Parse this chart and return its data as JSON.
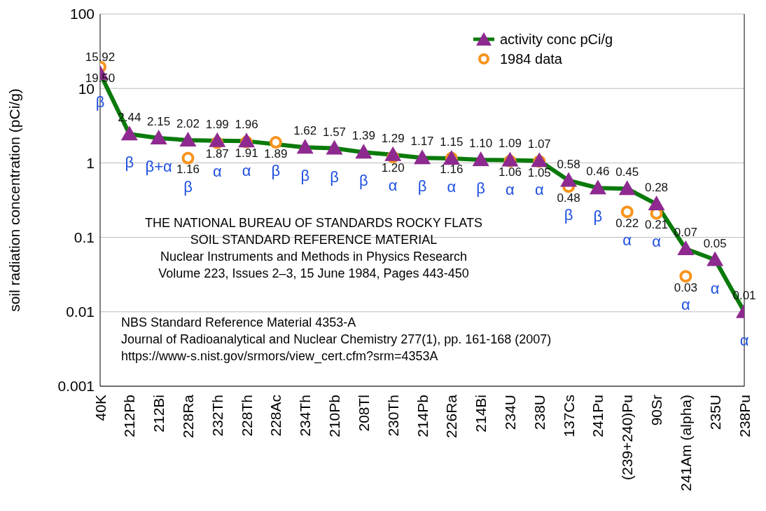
{
  "chart_data": {
    "type": "line",
    "ylabel": "soil radiation concentration (pCi/g)",
    "categories": [
      "40K",
      "212Pb",
      "212Bi",
      "228Ra",
      "232Th",
      "228Th",
      "228Ac",
      "234Th",
      "210Pb",
      "208Tl",
      "230Th",
      "214Pb",
      "226Ra",
      "214Bi",
      "234U",
      "238U",
      "137Cs",
      "241Pu",
      "(239+240)Pu",
      "90Sr",
      "241Am (alpha)",
      "235U",
      "238Pu"
    ],
    "series": [
      {
        "name": "activity conc pCi/g",
        "color": "#8e2a8f",
        "marker": "triangle",
        "values": [
          15.92,
          2.44,
          2.15,
          2.02,
          1.99,
          1.96,
          null,
          1.62,
          1.57,
          1.39,
          1.29,
          1.17,
          1.15,
          1.1,
          1.09,
          1.07,
          0.58,
          0.46,
          0.45,
          0.28,
          0.07,
          0.05,
          0.01
        ],
        "value_labels": [
          "15.92",
          "2.44",
          "2.15",
          "2.02",
          "1.99",
          "1.96",
          null,
          "1.62",
          "1.57",
          "1.39",
          "1.29",
          "1.17",
          "1.15",
          "1.10",
          "1.09",
          "1.07",
          "0.58",
          "0.46",
          "0.45",
          "0.28",
          "0.07",
          "0.05",
          "0.01"
        ]
      },
      {
        "name": "1984 data",
        "type": "scatter",
        "color": "#f7941d",
        "marker": "circle",
        "values": [
          19.5,
          null,
          null,
          1.16,
          1.87,
          1.91,
          1.89,
          null,
          null,
          null,
          1.2,
          null,
          1.16,
          null,
          1.06,
          1.05,
          0.48,
          null,
          0.22,
          0.21,
          0.03,
          null,
          null
        ],
        "value_labels": [
          "19.50",
          null,
          null,
          "1.16",
          "1.87",
          "1.91",
          "1.89",
          null,
          null,
          null,
          "1.20",
          null,
          "1.16",
          null,
          "1.06",
          "1.05",
          "0.48",
          null,
          "0.22",
          "0.21",
          "0.03",
          null,
          null
        ]
      }
    ],
    "log": "y",
    "ylim": [
      0.001,
      100
    ],
    "yticks": [
      0.001,
      0.01,
      0.1,
      1,
      10,
      100
    ],
    "grid": "y",
    "legend": "top right",
    "annotations": [
      "THE NATIONAL BUREAU OF STANDARDS ROCKY FLATS\nSOIL STANDARD REFERENCE MATERIAL\nNuclear Instruments and Methods in Physics Research\nVolume 223, Issues 2–3, 15 June 1984, Pages 443-450",
      "NBS Standard Reference Material 4353-A\nJournal of Radioanalytical and Nuclear Chemistry 277(1), pp. 161-168 (2007)\nhttps://www-s.nist.gov/srmors/view_cert.cfm?srm=4353A",
      {
        "text": "β",
        "x": "40K",
        "y": 15.92
      },
      {
        "text": "β",
        "x": "212Pb",
        "y": 2.44
      },
      {
        "text": "β+α",
        "x": "212Bi",
        "y": 2.15
      },
      {
        "text": "β",
        "x": "228Ra",
        "y": 1.16
      },
      {
        "text": "α",
        "x": "232Th",
        "y": 1.87
      },
      {
        "text": "α",
        "x": "228Th",
        "y": 1.91
      },
      {
        "text": "β",
        "x": "228Ac",
        "y": 1.89
      },
      {
        "text": "β",
        "x": "234Th",
        "y": 1.62
      },
      {
        "text": "β",
        "x": "210Pb",
        "y": 1.57
      },
      {
        "text": "β",
        "x": "208Tl",
        "y": 1.39
      },
      {
        "text": "α",
        "x": "230Th",
        "y": 1.2
      },
      {
        "text": "β",
        "x": "214Pb",
        "y": 1.17
      },
      {
        "text": "α",
        "x": "226Ra",
        "y": 1.16
      },
      {
        "text": "β",
        "x": "214Bi",
        "y": 1.1
      },
      {
        "text": "α",
        "x": "234U",
        "y": 1.06
      },
      {
        "text": "α",
        "x": "238U",
        "y": 1.05
      },
      {
        "text": "β",
        "x": "137Cs",
        "y": 0.48
      },
      {
        "text": "β",
        "x": "241Pu",
        "y": 0.46
      },
      {
        "text": "α",
        "x": "(239+240)Pu",
        "y": 0.22
      },
      {
        "text": "α",
        "x": "90Sr",
        "y": 0.21
      },
      {
        "text": "α",
        "x": "241Am (alpha)",
        "y": 0.03
      },
      {
        "text": "α",
        "x": "235U",
        "y": 0.05
      },
      {
        "text": "α",
        "x": "238Pu",
        "y": 0.01
      }
    ]
  }
}
